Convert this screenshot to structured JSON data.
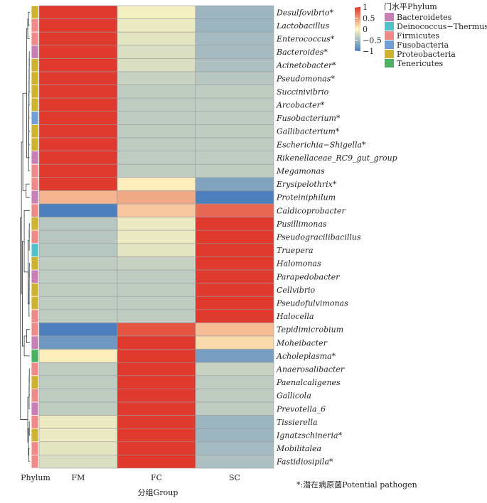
{
  "chart_data": {
    "type": "heatmap",
    "columns": [
      "FM",
      "FC",
      "SC"
    ],
    "row_annotation_label": "Phylum",
    "xlabel": "分组Group",
    "pathogen_marker": "*",
    "footnote": "*:潜在病原菌Potential pathogen",
    "color_scale": {
      "ticks": [
        "1",
        "0.5",
        "0",
        "−0.5",
        "−1"
      ],
      "values": [
        1,
        0.5,
        0,
        -0.5,
        -1
      ],
      "colors": {
        "high": "#e0392e",
        "mid": "#fdf6c3",
        "low": "#4d7fbf"
      }
    },
    "phylum_legend": {
      "title": "门水平Phylum",
      "items": [
        {
          "name": "Bacteroidetes",
          "color": "#c77fb6"
        },
        {
          "name": "Deinococcus−Thermus",
          "color": "#4fc1c9"
        },
        {
          "name": "Firmicutes",
          "color": "#f08a86"
        },
        {
          "name": "Fusobacteria",
          "color": "#6f9fd6"
        },
        {
          "name": "Proteobacteria",
          "color": "#cdb32f"
        },
        {
          "name": "Tenericutes",
          "color": "#4bb163"
        }
      ]
    },
    "rows": [
      {
        "genus": "Desulfovibrio",
        "pathogen": true,
        "phylum": "Proteobacteria",
        "values": [
          1.15,
          -0.05,
          -0.55
        ]
      },
      {
        "genus": "Lactobacillus",
        "pathogen": false,
        "phylum": "Firmicutes",
        "values": [
          1.15,
          -0.1,
          -0.55
        ]
      },
      {
        "genus": "Enterococcus",
        "pathogen": true,
        "phylum": "Firmicutes",
        "values": [
          1.15,
          -0.15,
          -0.5
        ]
      },
      {
        "genus": "Bacteroides",
        "pathogen": true,
        "phylum": "Bacteroidetes",
        "values": [
          1.15,
          -0.2,
          -0.5
        ]
      },
      {
        "genus": "Acinetobacter",
        "pathogen": true,
        "phylum": "Proteobacteria",
        "values": [
          1.15,
          -0.2,
          -0.45
        ]
      },
      {
        "genus": "Pseudomonas",
        "pathogen": true,
        "phylum": "Proteobacteria",
        "values": [
          1.15,
          -0.3,
          -0.4
        ]
      },
      {
        "genus": "Succinivibrio",
        "pathogen": false,
        "phylum": "Proteobacteria",
        "values": [
          1.15,
          -0.35,
          -0.35
        ]
      },
      {
        "genus": "Arcobacter",
        "pathogen": true,
        "phylum": "Proteobacteria",
        "values": [
          1.15,
          -0.35,
          -0.35
        ]
      },
      {
        "genus": "Fusobacterium",
        "pathogen": true,
        "phylum": "Fusobacteria",
        "values": [
          1.15,
          -0.35,
          -0.35
        ]
      },
      {
        "genus": "Gallibacterium",
        "pathogen": true,
        "phylum": "Proteobacteria",
        "values": [
          1.15,
          -0.35,
          -0.35
        ]
      },
      {
        "genus": "Escherichia−Shigella",
        "pathogen": true,
        "phylum": "Proteobacteria",
        "values": [
          1.15,
          -0.35,
          -0.35
        ]
      },
      {
        "genus": "Rikenellaceae_RC9_gut_group",
        "pathogen": false,
        "phylum": "Bacteroidetes",
        "values": [
          1.15,
          -0.35,
          -0.35
        ]
      },
      {
        "genus": "Megamonas",
        "pathogen": false,
        "phylum": "Firmicutes",
        "values": [
          1.15,
          -0.35,
          -0.35
        ]
      },
      {
        "genus": "Erysipelothrix",
        "pathogen": true,
        "phylum": "Firmicutes",
        "values": [
          1.0,
          0.05,
          -0.7
        ]
      },
      {
        "genus": "Proteiniphilum",
        "pathogen": false,
        "phylum": "Bacteroidetes",
        "values": [
          0.35,
          0.4,
          -1.0
        ]
      },
      {
        "genus": "Caldicoprobacter",
        "pathogen": false,
        "phylum": "Firmicutes",
        "values": [
          -1.0,
          0.25,
          0.75
        ]
      },
      {
        "genus": "Pusillimonas",
        "pathogen": false,
        "phylum": "Proteobacteria",
        "values": [
          -0.4,
          -0.1,
          1.15
        ]
      },
      {
        "genus": "Pseudogracilibacillus",
        "pathogen": false,
        "phylum": "Firmicutes",
        "values": [
          -0.4,
          -0.1,
          1.15
        ]
      },
      {
        "genus": "Truepera",
        "pathogen": false,
        "phylum": "Deinococcus−Thermus",
        "values": [
          -0.4,
          -0.15,
          1.15
        ]
      },
      {
        "genus": "Halomonas",
        "pathogen": false,
        "phylum": "Proteobacteria",
        "values": [
          -0.35,
          -0.3,
          1.15
        ]
      },
      {
        "genus": "Parapedobacter",
        "pathogen": false,
        "phylum": "Bacteroidetes",
        "values": [
          -0.35,
          -0.35,
          1.15
        ]
      },
      {
        "genus": "Cellvibrio",
        "pathogen": false,
        "phylum": "Proteobacteria",
        "values": [
          -0.35,
          -0.35,
          1.15
        ]
      },
      {
        "genus": "Pseudofulvimonas",
        "pathogen": false,
        "phylum": "Proteobacteria",
        "values": [
          -0.35,
          -0.35,
          1.15
        ]
      },
      {
        "genus": "Halocella",
        "pathogen": false,
        "phylum": "Firmicutes",
        "values": [
          -0.35,
          -0.35,
          1.15
        ]
      },
      {
        "genus": "Tepidimicrobium",
        "pathogen": false,
        "phylum": "Firmicutes",
        "values": [
          -1.0,
          0.85,
          0.3
        ]
      },
      {
        "genus": "Moheibacter",
        "pathogen": false,
        "phylum": "Bacteroidetes",
        "values": [
          -0.8,
          1.0,
          0.15
        ]
      },
      {
        "genus": "Acholeplasma",
        "pathogen": true,
        "phylum": "Tenericutes",
        "values": [
          0.05,
          1.0,
          -0.75
        ]
      },
      {
        "genus": "Anaerosalibacter",
        "pathogen": false,
        "phylum": "Firmicutes",
        "values": [
          -0.35,
          1.15,
          -0.3
        ]
      },
      {
        "genus": "Paenalcaligenes",
        "pathogen": false,
        "phylum": "Proteobacteria",
        "values": [
          -0.35,
          1.15,
          -0.35
        ]
      },
      {
        "genus": "Gallicola",
        "pathogen": false,
        "phylum": "Firmicutes",
        "values": [
          -0.35,
          1.15,
          -0.35
        ]
      },
      {
        "genus": "Prevotella_6",
        "pathogen": false,
        "phylum": "Bacteroidetes",
        "values": [
          -0.35,
          1.15,
          -0.35
        ]
      },
      {
        "genus": "Tissierella",
        "pathogen": false,
        "phylum": "Firmicutes",
        "values": [
          -0.1,
          1.15,
          -0.55
        ]
      },
      {
        "genus": "Ignatzschineria",
        "pathogen": true,
        "phylum": "Proteobacteria",
        "values": [
          -0.1,
          1.15,
          -0.55
        ]
      },
      {
        "genus": "Mobilitalea",
        "pathogen": false,
        "phylum": "Firmicutes",
        "values": [
          -0.15,
          1.15,
          -0.5
        ]
      },
      {
        "genus": "Fastidiosipila",
        "pathogen": true,
        "phylum": "Firmicutes",
        "values": [
          -0.2,
          1.15,
          -0.45
        ]
      }
    ]
  }
}
